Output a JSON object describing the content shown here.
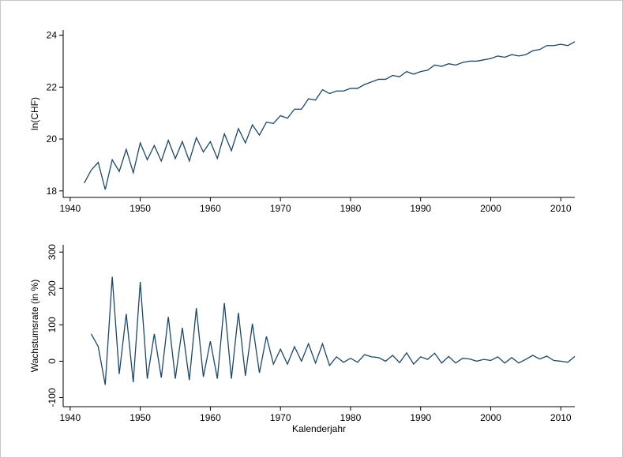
{
  "chart_data": [
    {
      "type": "line",
      "ylabel": "ln(CHF)",
      "x": [
        1942,
        1943,
        1944,
        1945,
        1946,
        1947,
        1948,
        1949,
        1950,
        1951,
        1952,
        1953,
        1954,
        1955,
        1956,
        1957,
        1958,
        1959,
        1960,
        1961,
        1962,
        1963,
        1964,
        1965,
        1966,
        1967,
        1968,
        1969,
        1970,
        1971,
        1972,
        1973,
        1974,
        1975,
        1976,
        1977,
        1978,
        1979,
        1980,
        1981,
        1982,
        1983,
        1984,
        1985,
        1986,
        1987,
        1988,
        1989,
        1990,
        1991,
        1992,
        1993,
        1994,
        1995,
        1996,
        1997,
        1998,
        1999,
        2000,
        2001,
        2002,
        2003,
        2004,
        2005,
        2006,
        2007,
        2008,
        2009,
        2010,
        2011,
        2012
      ],
      "series": [
        {
          "color": "#1a476f",
          "values": [
            18.3,
            18.8,
            19.1,
            18.05,
            19.2,
            18.75,
            19.6,
            18.7,
            19.85,
            19.2,
            19.75,
            19.15,
            19.95,
            19.25,
            19.9,
            19.15,
            20.05,
            19.5,
            19.9,
            19.25,
            20.2,
            19.55,
            20.4,
            19.85,
            20.55,
            20.15,
            20.65,
            20.6,
            20.9,
            20.8,
            21.15,
            21.15,
            21.55,
            21.5,
            21.9,
            21.75,
            21.85,
            21.85,
            21.95,
            21.95,
            22.1,
            22.2,
            22.3,
            22.3,
            22.45,
            22.4,
            22.6,
            22.5,
            22.6,
            22.65,
            22.85,
            22.8,
            22.9,
            22.85,
            22.95,
            23.0,
            23.0,
            23.05,
            23.1,
            23.2,
            23.15,
            23.25,
            23.2,
            23.25,
            23.4,
            23.45,
            23.6,
            23.6,
            23.65,
            23.6,
            23.75
          ]
        }
      ],
      "xlim": [
        1939,
        2012
      ],
      "xticks": [
        1940,
        1950,
        1960,
        1970,
        1980,
        1990,
        2000,
        2010
      ],
      "ylim": [
        17.75,
        24.2
      ],
      "yticks": [
        18,
        20,
        22,
        24
      ]
    },
    {
      "type": "line",
      "ylabel": "Wachstumsrate (in %)",
      "xlabel": "Kalenderjahr",
      "x": [
        1943,
        1944,
        1945,
        1946,
        1947,
        1948,
        1949,
        1950,
        1951,
        1952,
        1953,
        1954,
        1955,
        1956,
        1957,
        1958,
        1959,
        1960,
        1961,
        1962,
        1963,
        1964,
        1965,
        1966,
        1967,
        1968,
        1969,
        1970,
        1971,
        1972,
        1973,
        1974,
        1975,
        1976,
        1977,
        1978,
        1979,
        1980,
        1981,
        1982,
        1983,
        1984,
        1985,
        1986,
        1987,
        1988,
        1989,
        1990,
        1991,
        1992,
        1993,
        1994,
        1995,
        1996,
        1997,
        1998,
        1999,
        2000,
        2001,
        2002,
        2003,
        2004,
        2005,
        2006,
        2007,
        2008,
        2009,
        2010,
        2011,
        2012
      ],
      "series": [
        {
          "color": "#1a476f",
          "values": [
            75,
            40,
            -65,
            232,
            -35,
            130,
            -58,
            218,
            -48,
            75,
            -45,
            122,
            -48,
            92,
            -52,
            146,
            -43,
            55,
            -48,
            160,
            -48,
            133,
            -40,
            103,
            -32,
            68,
            -8,
            33,
            -8,
            40,
            0,
            48,
            -5,
            48,
            -12,
            12,
            -3,
            8,
            -3,
            18,
            12,
            10,
            0,
            16,
            -4,
            23,
            -8,
            12,
            5,
            22,
            -5,
            13,
            -5,
            8,
            6,
            0,
            5,
            2,
            12,
            -5,
            10,
            -5,
            5,
            16,
            6,
            14,
            2,
            0,
            -3,
            13
          ]
        }
      ],
      "xlim": [
        1939,
        2012
      ],
      "xticks": [
        1940,
        1950,
        1960,
        1970,
        1980,
        1990,
        2000,
        2010
      ],
      "ylim": [
        -125,
        320
      ],
      "yticks": [
        -100,
        0,
        100,
        200,
        300
      ]
    }
  ]
}
